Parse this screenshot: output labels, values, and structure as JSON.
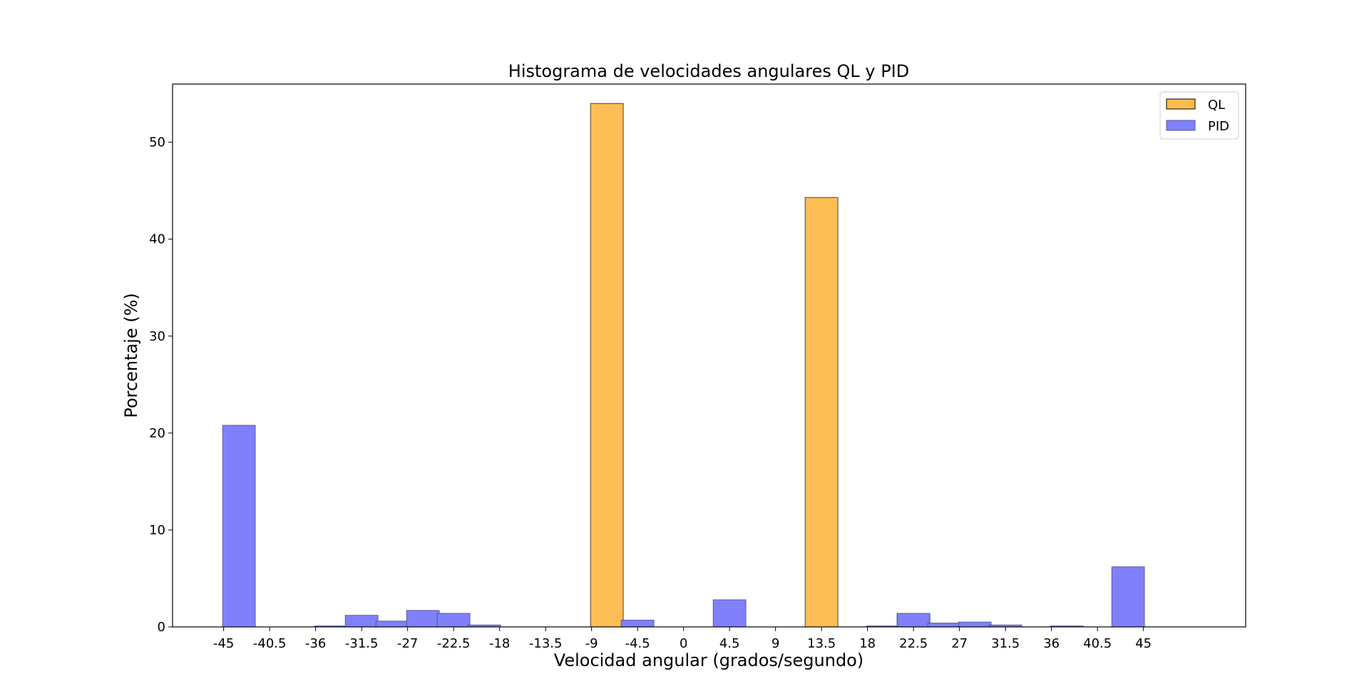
{
  "chart_data": {
    "type": "bar",
    "title": "Histograma de velocidades angulares QL y PID",
    "xlabel": "Velocidad angular (grados/segundo)",
    "ylabel": "Porcentaje (%)",
    "xlim": [
      -50,
      55
    ],
    "ylim": [
      0,
      56
    ],
    "bin_width": 3.2,
    "x_ticks": [
      -45,
      -40.5,
      -36,
      -31.5,
      -27,
      -22.5,
      -18,
      -13.5,
      -9,
      -4.5,
      0,
      4.5,
      9,
      13.5,
      18,
      22.5,
      27,
      31.5,
      36,
      40.5,
      45
    ],
    "x_tick_labels": [
      "-45",
      "-40.5",
      "-36",
      "-31.5",
      "-27",
      "-22.5",
      "-18",
      "-13.5",
      "-9",
      "-4.5",
      "0",
      "4.5",
      "9",
      "13.5",
      "18",
      "22.5",
      "27",
      "31.5",
      "36",
      "40.5",
      "45"
    ],
    "y_ticks": [
      0,
      10,
      20,
      30,
      40,
      50
    ],
    "y_tick_labels": [
      "0",
      "10",
      "20",
      "30",
      "40",
      "50"
    ],
    "grid": false,
    "legend": {
      "position": "top-right"
    },
    "series": [
      {
        "name": "QL",
        "color": "#fdbb4c",
        "bins": [
          {
            "x": -25.5,
            "value": 0.5
          },
          {
            "x": -7.5,
            "value": 54.0
          },
          {
            "x": 13.5,
            "value": 44.3
          },
          {
            "x": 22.5,
            "value": 1.3
          }
        ]
      },
      {
        "name": "PID",
        "color": "#8080fd",
        "bins": [
          {
            "x": -43.5,
            "value": 20.8
          },
          {
            "x": -34.5,
            "value": 0.1
          },
          {
            "x": -31.5,
            "value": 1.2
          },
          {
            "x": -28.5,
            "value": 0.6
          },
          {
            "x": -25.5,
            "value": 1.7
          },
          {
            "x": -22.5,
            "value": 1.4
          },
          {
            "x": -19.5,
            "value": 0.2
          },
          {
            "x": -4.5,
            "value": 0.7
          },
          {
            "x": 4.5,
            "value": 2.8
          },
          {
            "x": 19.5,
            "value": 0.1
          },
          {
            "x": 22.5,
            "value": 1.4
          },
          {
            "x": 25.5,
            "value": 0.4
          },
          {
            "x": 28.5,
            "value": 0.5
          },
          {
            "x": 31.5,
            "value": 0.2
          },
          {
            "x": 37.5,
            "value": 0.1
          },
          {
            "x": 43.5,
            "value": 6.2
          }
        ]
      }
    ]
  }
}
